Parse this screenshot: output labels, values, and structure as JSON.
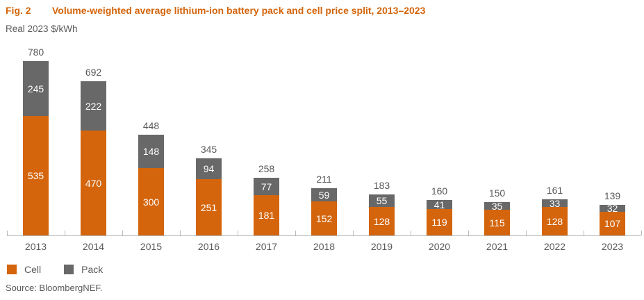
{
  "header": {
    "fig_label": "Fig. 2",
    "title": "Volume-weighted average lithium-ion battery pack and cell price split, 2013–2023"
  },
  "subtitle": "Real 2023 $/kWh",
  "source": "Source: BloombergNEF.",
  "colors": {
    "cell": "#D4650C",
    "pack": "#686868",
    "title": "#D4650C",
    "axis": "#B9B9B9",
    "label_dark": "#58595B",
    "label_light": "#FFFFFF"
  },
  "legend": [
    {
      "label": "Cell",
      "color_key": "cell"
    },
    {
      "label": "Pack",
      "color_key": "pack"
    }
  ],
  "chart_data": {
    "type": "bar",
    "stacked": true,
    "title": "Volume-weighted average lithium-ion battery pack and cell price split, 2013–2023",
    "ylabel": "Real 2023 $/kWh",
    "xlabel": "",
    "categories": [
      "2013",
      "2014",
      "2015",
      "2016",
      "2017",
      "2018",
      "2019",
      "2020",
      "2021",
      "2022",
      "2023"
    ],
    "series": [
      {
        "name": "Cell",
        "values": [
          535,
          470,
          300,
          251,
          181,
          152,
          128,
          119,
          115,
          128,
          107
        ]
      },
      {
        "name": "Pack",
        "values": [
          245,
          222,
          148,
          94,
          77,
          59,
          55,
          41,
          35,
          33,
          32
        ]
      }
    ],
    "totals": [
      780,
      692,
      448,
      345,
      258,
      211,
      183,
      160,
      150,
      161,
      139
    ],
    "ylim": [
      0,
      780
    ],
    "grid": false,
    "legend_position": "bottom-left",
    "value_labels": "white labels inside segments, gray totals above bars"
  }
}
